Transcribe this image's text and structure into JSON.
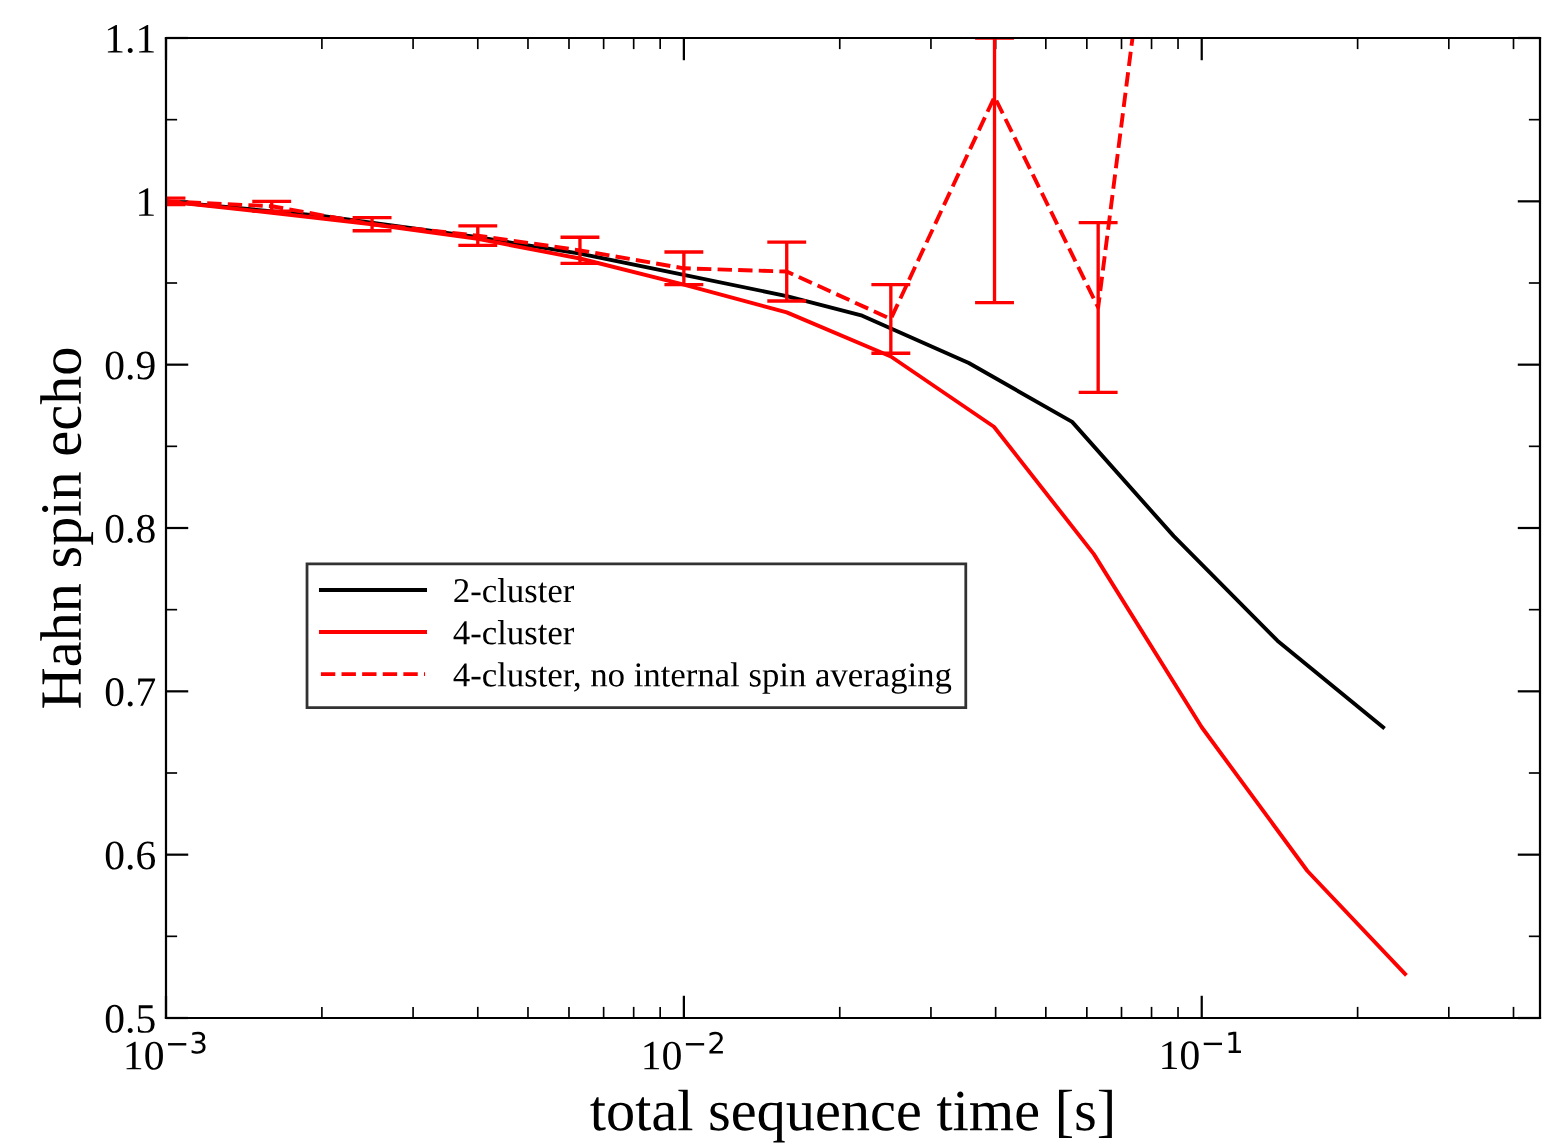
{
  "chart_data": {
    "type": "line",
    "xlabel": "total sequence time [s]",
    "ylabel": "Hahn spin echo",
    "log": "x",
    "xlim": [
      0.001,
      0.45
    ],
    "xticks": [
      {
        "value": 0.001,
        "label": "10$^{−3}$"
      },
      {
        "value": 0.01,
        "label": "10$^{−2}$"
      },
      {
        "value": 0.1,
        "label": "10$^{−1}$"
      }
    ],
    "ylim": [
      0.5,
      1.1
    ],
    "yticks": [
      0.5,
      0.6,
      0.7,
      0.8,
      0.9,
      1,
      1.1
    ],
    "grid": false,
    "legend": "center left",
    "marker": "none",
    "series": [
      {
        "name": "2-cluster",
        "color": "#000000",
        "line_style": "solid",
        "x": [
          0.001,
          0.002,
          0.004,
          0.0063,
          0.01,
          0.0158,
          0.0221,
          0.0355,
          0.0562,
          0.0883,
          0.14,
          0.224
        ],
        "values": [
          1.0,
          0.991,
          0.978,
          0.968,
          0.955,
          0.942,
          0.93,
          0.901,
          0.865,
          0.795,
          0.731,
          0.678
        ]
      },
      {
        "name": "4-cluster",
        "color": "#ff0000",
        "line_style": "solid",
        "x": [
          0.001,
          0.0016,
          0.0025,
          0.004,
          0.0063,
          0.01,
          0.0158,
          0.0251,
          0.0397,
          0.0619,
          0.1,
          0.16,
          0.247
        ],
        "values": [
          1.0,
          0.993,
          0.986,
          0.977,
          0.965,
          0.949,
          0.932,
          0.905,
          0.862,
          0.784,
          0.678,
          0.59,
          0.527
        ]
      },
      {
        "name": "4-cluster, no internal spin averaging",
        "color": "#ff0000",
        "line_style": "dashed",
        "x": [
          0.001,
          0.0016,
          0.0025,
          0.004,
          0.0063,
          0.01,
          0.0158,
          0.0251,
          0.0398,
          0.0631,
          0.0735
        ],
        "values": [
          1.0,
          0.997,
          0.986,
          0.979,
          0.97,
          0.959,
          0.957,
          0.928,
          1.064,
          0.935,
          1.1
        ],
        "errors": [
          0.002,
          0.003,
          0.004,
          0.006,
          0.008,
          0.01,
          0.018,
          0.021,
          [
            0.938,
            1.1
          ],
          0.052,
          null
        ]
      }
    ]
  }
}
